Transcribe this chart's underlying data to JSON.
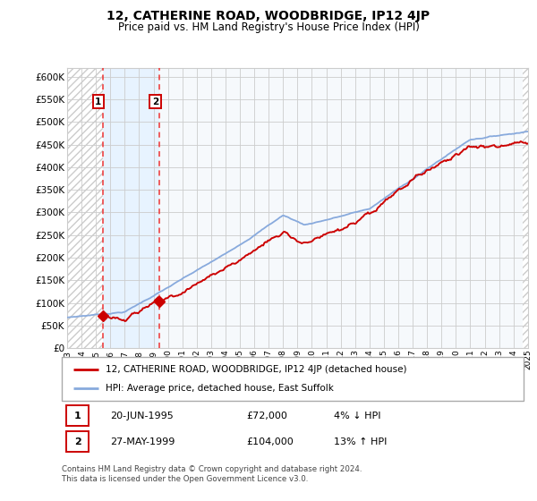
{
  "title": "12, CATHERINE ROAD, WOODBRIDGE, IP12 4JP",
  "subtitle": "Price paid vs. HM Land Registry's House Price Index (HPI)",
  "ylim": [
    0,
    620000
  ],
  "yticks": [
    0,
    50000,
    100000,
    150000,
    200000,
    250000,
    300000,
    350000,
    400000,
    450000,
    500000,
    550000,
    600000
  ],
  "ytick_labels": [
    "£0",
    "£50K",
    "£100K",
    "£150K",
    "£200K",
    "£250K",
    "£300K",
    "£350K",
    "£400K",
    "£450K",
    "£500K",
    "£550K",
    "£600K"
  ],
  "x_start_year": 1993,
  "x_end_year": 2025,
  "yr1": 1995.47,
  "yr2": 1999.41,
  "price1": 72000,
  "price2": 104000,
  "purchase_labels": [
    "1",
    "2"
  ],
  "vline_color": "#ee3333",
  "hpi_line_color": "#88aadd",
  "price_line_color": "#cc0000",
  "purchase_marker_color": "#cc0000",
  "legend1_text": "12, CATHERINE ROAD, WOODBRIDGE, IP12 4JP (detached house)",
  "legend2_text": "HPI: Average price, detached house, East Suffolk",
  "annotation1_date": "20-JUN-1995",
  "annotation1_price": "£72,000",
  "annotation1_hpi": "4% ↓ HPI",
  "annotation2_date": "27-MAY-1999",
  "annotation2_price": "£104,000",
  "annotation2_hpi": "13% ↑ HPI",
  "footer": "Contains HM Land Registry data © Crown copyright and database right 2024.\nThis data is licensed under the Open Government Licence v3.0."
}
